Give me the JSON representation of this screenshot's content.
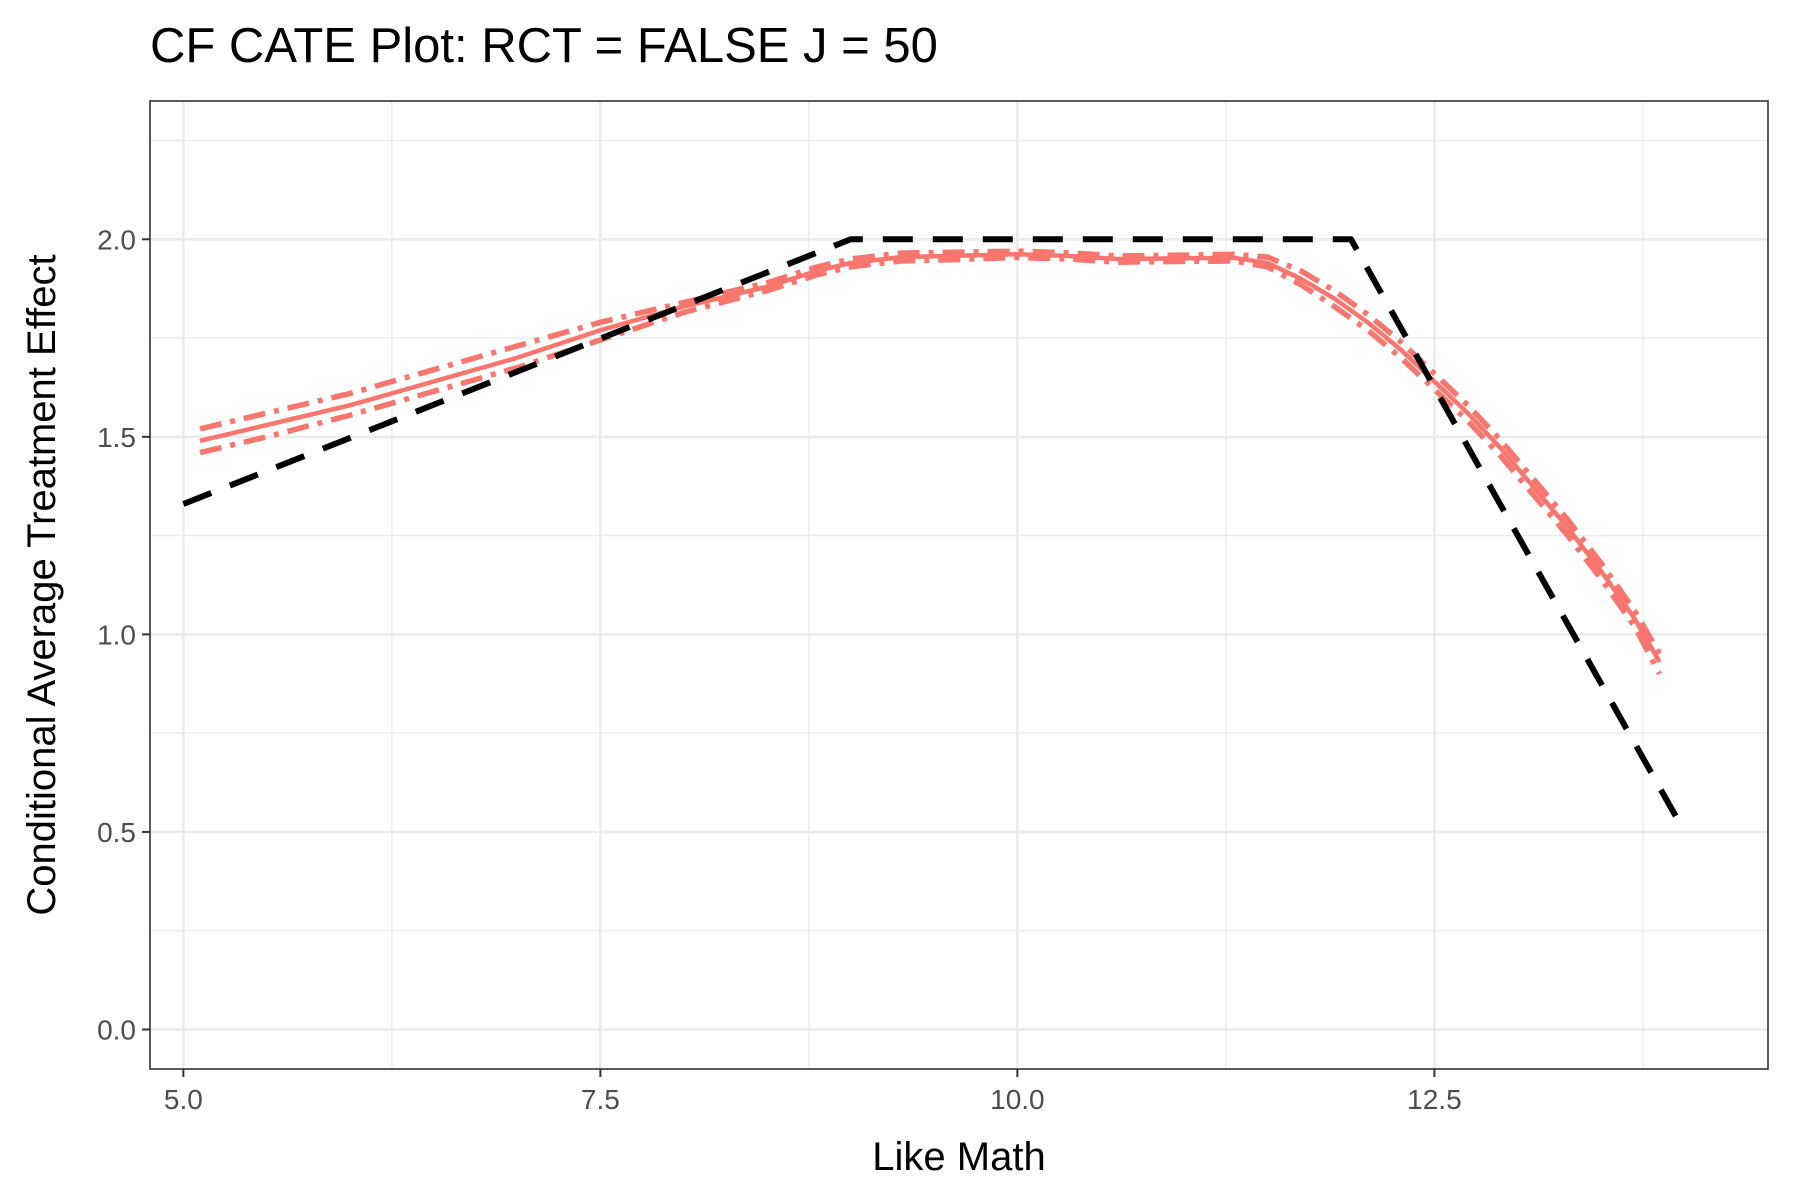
{
  "chart_data": {
    "type": "line",
    "title": "CF CATE Plot: RCT = FALSE J =  50",
    "xlabel": "Like Math",
    "ylabel": "Conditional Average Treatment Effect",
    "xlim": [
      4.8,
      14.5
    ],
    "ylim": [
      -0.1,
      2.35
    ],
    "x_ticks": [
      5.0,
      7.5,
      10.0,
      12.5
    ],
    "x_tick_labels": [
      "5.0",
      "7.5",
      "10.0",
      "12.5"
    ],
    "y_ticks": [
      0.0,
      0.5,
      1.0,
      1.5,
      2.0
    ],
    "y_tick_labels": [
      "0.0",
      "0.5",
      "1.0",
      "1.5",
      "2.0"
    ],
    "grid": true,
    "legend": "none",
    "colors": {
      "estimate": "#f8766d",
      "truth": "#000000",
      "grid": "#ebebeb",
      "panel_border": "#333333"
    },
    "series": [
      {
        "style": "dashed-black",
        "x": [
          5.0,
          9.0,
          12.0,
          14.0
        ],
        "y": [
          1.33,
          2.0,
          2.0,
          0.5
        ]
      },
      {
        "style": "solid-red",
        "x": [
          5.1,
          5.5,
          6.0,
          6.5,
          7.0,
          7.5,
          8.0,
          8.5,
          8.8,
          9.0,
          9.3,
          9.6,
          10.0,
          10.3,
          10.6,
          11.0,
          11.3,
          11.5,
          11.7,
          11.9,
          12.1,
          12.3,
          12.5,
          12.7,
          12.9,
          13.1,
          13.3,
          13.5,
          13.7,
          13.85
        ],
        "y": [
          1.49,
          1.53,
          1.58,
          1.64,
          1.7,
          1.77,
          1.83,
          1.88,
          1.92,
          1.94,
          1.955,
          1.958,
          1.962,
          1.958,
          1.95,
          1.952,
          1.953,
          1.94,
          1.9,
          1.85,
          1.79,
          1.72,
          1.64,
          1.56,
          1.47,
          1.37,
          1.27,
          1.16,
          1.04,
          0.93
        ]
      },
      {
        "style": "dashdot-red-upper",
        "x": [
          5.1,
          5.5,
          6.0,
          6.5,
          7.0,
          7.5,
          8.0,
          8.5,
          8.8,
          9.0,
          9.3,
          9.6,
          10.0,
          10.3,
          10.6,
          11.0,
          11.3,
          11.5,
          11.7,
          11.9,
          12.1,
          12.3,
          12.5,
          12.7,
          12.9,
          13.1,
          13.3,
          13.5,
          13.7,
          13.85
        ],
        "y": [
          1.52,
          1.56,
          1.61,
          1.67,
          1.73,
          1.79,
          1.84,
          1.89,
          1.93,
          1.95,
          1.965,
          1.967,
          1.97,
          1.966,
          1.958,
          1.96,
          1.962,
          1.955,
          1.92,
          1.87,
          1.81,
          1.74,
          1.66,
          1.58,
          1.49,
          1.39,
          1.29,
          1.18,
          1.06,
          0.95
        ]
      },
      {
        "style": "dashdot-red-lower",
        "x": [
          5.1,
          5.5,
          6.0,
          6.5,
          7.0,
          7.5,
          8.0,
          8.5,
          8.8,
          9.0,
          9.3,
          9.6,
          10.0,
          10.3,
          10.6,
          11.0,
          11.3,
          11.5,
          11.7,
          11.9,
          12.1,
          12.3,
          12.5,
          12.7,
          12.9,
          13.1,
          13.3,
          13.5,
          13.7,
          13.85
        ],
        "y": [
          1.46,
          1.5,
          1.555,
          1.615,
          1.675,
          1.745,
          1.815,
          1.87,
          1.91,
          1.93,
          1.945,
          1.948,
          1.954,
          1.95,
          1.942,
          1.944,
          1.945,
          1.93,
          1.885,
          1.83,
          1.77,
          1.7,
          1.62,
          1.54,
          1.45,
          1.35,
          1.25,
          1.14,
          1.02,
          0.9
        ]
      }
    ]
  }
}
